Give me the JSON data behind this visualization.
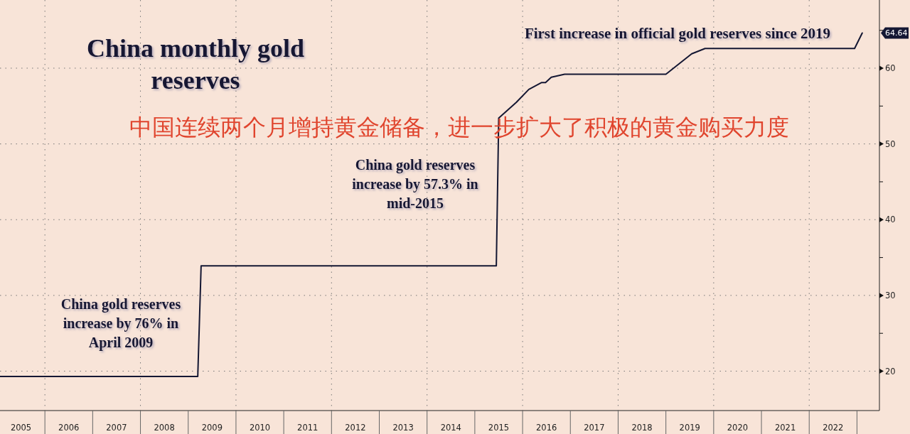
{
  "chart_data": {
    "type": "line",
    "title": "China monthly gold reserves",
    "subtitle": "中国连续两个月增持黄金储备，进一步扩大了积极的黄金购买力度",
    "x": [
      2005.06,
      2009.2,
      2009.27,
      2015.45,
      2015.5,
      2015.87,
      2016.13,
      2016.4,
      2016.48,
      2016.6,
      2016.88,
      2019.0,
      2019.54,
      2019.82,
      2022.95,
      2023.11
    ],
    "series": [
      {
        "color": "#141733",
        "values": [
          19.3,
          19.3,
          33.9,
          33.9,
          53.4,
          55.5,
          57.2,
          58.1,
          58.1,
          58.8,
          59.2,
          59.2,
          61.9,
          62.6,
          62.6,
          64.64
        ]
      }
    ],
    "xlim": [
      2005.06,
      2023.47
    ],
    "ylim": [
      14.8,
      69
    ],
    "xticks": [
      {
        "value": 2005.5,
        "label": "2005"
      },
      {
        "value": 2006,
        "label": null
      },
      {
        "value": 2006.5,
        "label": "2006"
      },
      {
        "value": 2007,
        "label": null
      },
      {
        "value": 2007.5,
        "label": "2007"
      },
      {
        "value": 2008,
        "label": null
      },
      {
        "value": 2008.5,
        "label": "2008"
      },
      {
        "value": 2009,
        "label": null
      },
      {
        "value": 2009.5,
        "label": "2009"
      },
      {
        "value": 2010,
        "label": null
      },
      {
        "value": 2010.5,
        "label": "2010"
      },
      {
        "value": 2011,
        "label": null
      },
      {
        "value": 2011.5,
        "label": "2011"
      },
      {
        "value": 2012,
        "label": null
      },
      {
        "value": 2012.5,
        "label": "2012"
      },
      {
        "value": 2013,
        "label": null
      },
      {
        "value": 2013.5,
        "label": "2013"
      },
      {
        "value": 2014,
        "label": null
      },
      {
        "value": 2014.5,
        "label": "2014"
      },
      {
        "value": 2015,
        "label": null
      },
      {
        "value": 2015.5,
        "label": "2015"
      },
      {
        "value": 2016,
        "label": null
      },
      {
        "value": 2016.5,
        "label": "2016"
      },
      {
        "value": 2017,
        "label": null
      },
      {
        "value": 2017.5,
        "label": "2017"
      },
      {
        "value": 2018,
        "label": null
      },
      {
        "value": 2018.5,
        "label": "2018"
      },
      {
        "value": 2019,
        "label": null
      },
      {
        "value": 2019.5,
        "label": "2019"
      },
      {
        "value": 2020,
        "label": null
      },
      {
        "value": 2020.5,
        "label": "2020"
      },
      {
        "value": 2021,
        "label": null
      },
      {
        "value": 2021.5,
        "label": "2021"
      },
      {
        "value": 2022,
        "label": null
      },
      {
        "value": 2022.5,
        "label": "2022"
      },
      {
        "value": 2023,
        "label": null
      }
    ],
    "yticks": [
      20,
      {
        "value": 25,
        "label": null
      },
      30,
      {
        "value": 35,
        "label": null
      },
      40,
      {
        "value": 45,
        "label": null
      },
      50,
      {
        "value": 55,
        "label": null
      },
      60,
      {
        "value": 65,
        "label": null
      }
    ],
    "grid": true,
    "legend": false,
    "marker": "none",
    "line_style": "solid",
    "annotations": [
      "64.64",
      "China gold reserves\nincrease by 76% in\nApril 2009",
      "China gold reserves\nincrease by 57.3% in\nmid-2015",
      "First increase in official gold reserves since 2019"
    ]
  }
}
